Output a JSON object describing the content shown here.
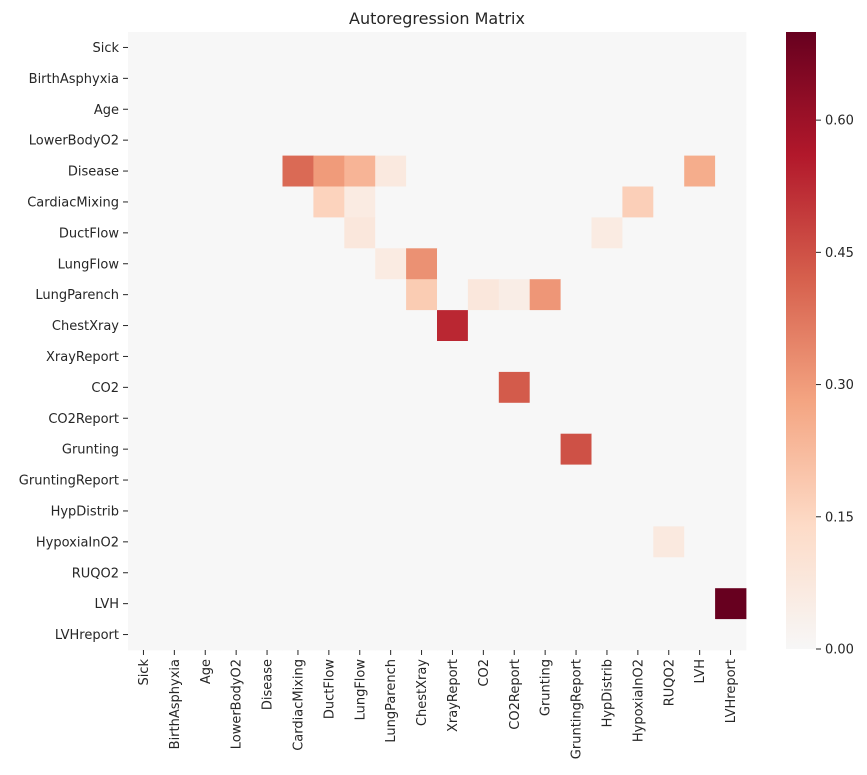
{
  "chart_data": {
    "type": "heatmap",
    "title": "Autoregression Matrix",
    "rows": [
      "Sick",
      "BirthAsphyxia",
      "Age",
      "LowerBodyO2",
      "Disease",
      "CardiacMixing",
      "DuctFlow",
      "LungFlow",
      "LungParench",
      "ChestXray",
      "XrayReport",
      "CO2",
      "CO2Report",
      "Grunting",
      "GruntingReport",
      "HypDistrib",
      "HypoxiaInO2",
      "RUQO2",
      "LVH",
      "LVHreport"
    ],
    "columns": [
      "Sick",
      "BirthAsphyxia",
      "Age",
      "LowerBodyO2",
      "Disease",
      "CardiacMixing",
      "DuctFlow",
      "LungFlow",
      "LungParench",
      "ChestXray",
      "XrayReport",
      "CO2",
      "CO2Report",
      "Grunting",
      "GruntingReport",
      "HypDistrib",
      "HypoxiaInO2",
      "RUQO2",
      "LVH",
      "LVHreport"
    ],
    "cells": [
      {
        "row": "Disease",
        "col": "CardiacMixing",
        "value": 0.4
      },
      {
        "row": "Disease",
        "col": "DuctFlow",
        "value": 0.3
      },
      {
        "row": "Disease",
        "col": "LungFlow",
        "value": 0.24
      },
      {
        "row": "Disease",
        "col": "LungParench",
        "value": 0.07
      },
      {
        "row": "Disease",
        "col": "LVH",
        "value": 0.26
      },
      {
        "row": "CardiacMixing",
        "col": "DuctFlow",
        "value": 0.16
      },
      {
        "row": "CardiacMixing",
        "col": "LungFlow",
        "value": 0.06
      },
      {
        "row": "CardiacMixing",
        "col": "HypoxiaInO2",
        "value": 0.17
      },
      {
        "row": "DuctFlow",
        "col": "LungFlow",
        "value": 0.08
      },
      {
        "row": "DuctFlow",
        "col": "HypDistrib",
        "value": 0.06
      },
      {
        "row": "LungFlow",
        "col": "LungParench",
        "value": 0.06
      },
      {
        "row": "LungFlow",
        "col": "ChestXray",
        "value": 0.32
      },
      {
        "row": "LungParench",
        "col": "ChestXray",
        "value": 0.18
      },
      {
        "row": "LungParench",
        "col": "CO2",
        "value": 0.08
      },
      {
        "row": "LungParench",
        "col": "CO2Report",
        "value": 0.05
      },
      {
        "row": "LungParench",
        "col": "Grunting",
        "value": 0.31
      },
      {
        "row": "ChestXray",
        "col": "XrayReport",
        "value": 0.53
      },
      {
        "row": "CO2",
        "col": "CO2Report",
        "value": 0.43
      },
      {
        "row": "Grunting",
        "col": "GruntingReport",
        "value": 0.45
      },
      {
        "row": "HypoxiaInO2",
        "col": "RUQO2",
        "value": 0.07
      },
      {
        "row": "LVH",
        "col": "LVHreport",
        "value": 0.7
      }
    ],
    "colorbar": {
      "min": 0.0,
      "max": 0.7,
      "ticks": [
        "0.00",
        "0.15",
        "0.30",
        "0.45",
        "0.60"
      ],
      "tick_values": [
        0.0,
        0.15,
        0.3,
        0.45,
        0.6
      ],
      "colormap": "RdBu_r (upper half)"
    },
    "colors": {
      "stops": [
        "#f7f7f7",
        "#fddbc7",
        "#f4a582",
        "#d6604d",
        "#b2182b",
        "#67001f"
      ],
      "text": "#262626"
    },
    "grid": false
  }
}
